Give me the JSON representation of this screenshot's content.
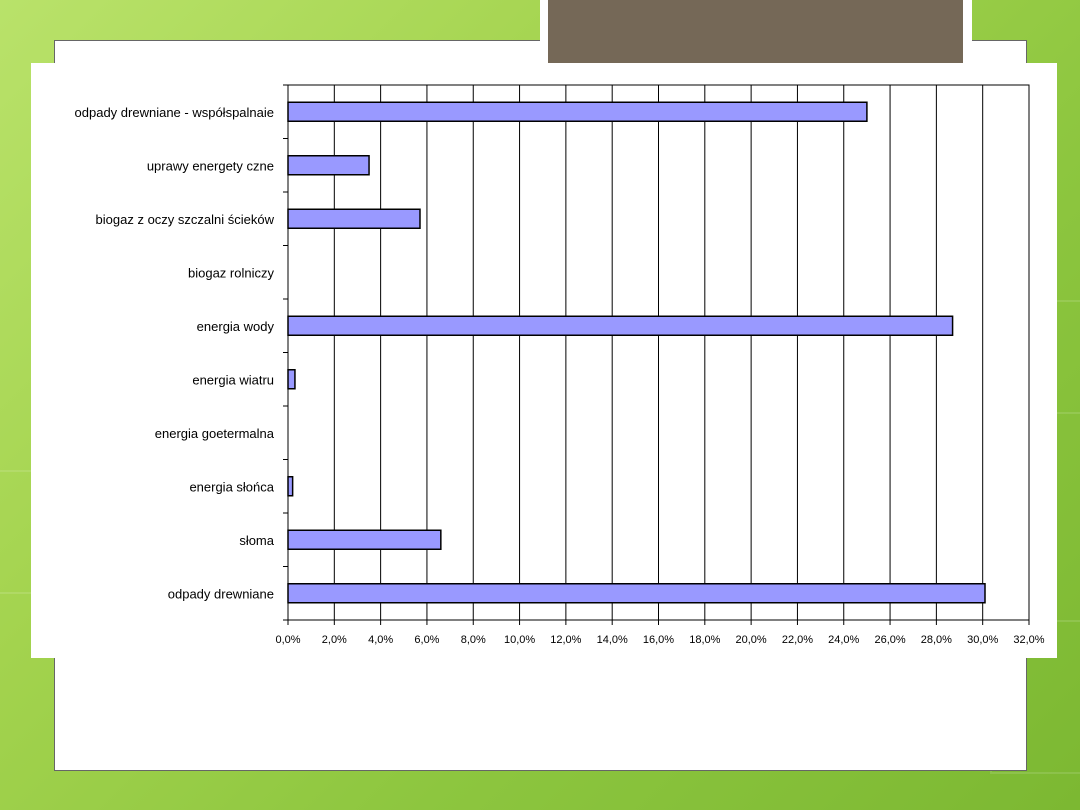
{
  "slide": {
    "background_color": "#a3d34e",
    "title_bar_color": "#756857"
  },
  "chart_data": {
    "type": "bar",
    "orientation": "horizontal",
    "categories": [
      "odpady  drewniane - współspalnaie",
      "uprawy  energety czne",
      "biogaz z oczy szczalni ścieków",
      "biogaz rolniczy",
      "energia wody",
      "energia wiatru",
      "energia goetermalna",
      "energia słońca",
      "słoma",
      "odpady  drewniane"
    ],
    "values": [
      25.0,
      3.5,
      5.7,
      0.0,
      28.7,
      0.3,
      0.0,
      0.2,
      6.6,
      30.1
    ],
    "xlim": [
      0,
      32
    ],
    "xtick_values": [
      0,
      2,
      4,
      6,
      8,
      10,
      12,
      14,
      16,
      18,
      20,
      22,
      24,
      26,
      28,
      30,
      32
    ],
    "xtick_labels": [
      "0,0%",
      "2,0%",
      "4,0%",
      "6,0%",
      "8,0%",
      "10,0%",
      "12,0%",
      "14,0%",
      "16,0%",
      "18,0%",
      "20,0%",
      "22,0%",
      "24,0%",
      "26,0%",
      "28,0%",
      "30,0%",
      "32,0%"
    ],
    "grid": "vertical",
    "bar_color": "#9999ff",
    "title": "",
    "xlabel": "",
    "ylabel": ""
  }
}
